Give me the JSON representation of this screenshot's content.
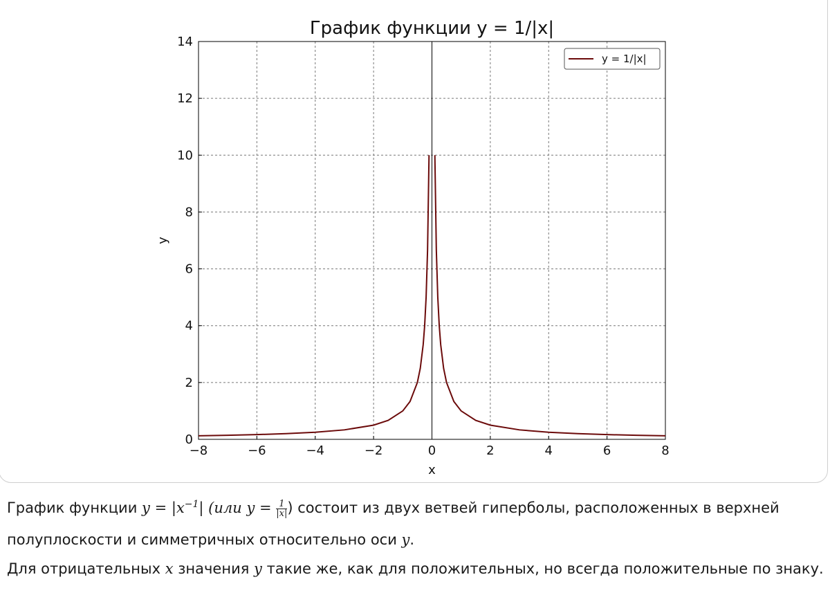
{
  "chart_data": {
    "type": "line",
    "title": "График функции y = 1/|x|",
    "x_label": "x",
    "y_label": "y",
    "xlim": [
      -8,
      8
    ],
    "ylim": [
      0,
      14
    ],
    "xticks": [
      {
        "value": -8,
        "label": "−8"
      },
      {
        "value": -6,
        "label": "−6"
      },
      {
        "value": -4,
        "label": "−4"
      },
      {
        "value": -2,
        "label": "−2"
      },
      0,
      2,
      4,
      6,
      8
    ],
    "yticks": [
      0,
      2,
      4,
      6,
      8,
      10,
      12,
      14
    ],
    "grid": true,
    "legend": "upper right",
    "series": [
      {
        "name": "y = 1/|x|",
        "color": "#6b0a0a",
        "x": [
          -8,
          -7,
          -6,
          -5,
          -4,
          -3,
          -2,
          -1.5,
          -1,
          -0.75,
          -0.5,
          -0.4,
          -0.3,
          -0.25,
          -0.2,
          -0.15,
          -0.1,
          0,
          0.1,
          0.15,
          0.2,
          0.25,
          0.3,
          0.4,
          0.5,
          0.75,
          1,
          1.5,
          2,
          3,
          4,
          5,
          6,
          7,
          8
        ],
        "values": [
          0.125,
          0.1429,
          0.1667,
          0.2,
          0.25,
          0.3333,
          0.5,
          0.6667,
          1,
          1.3333,
          2,
          2.5,
          3.3333,
          4,
          5,
          6.6667,
          10,
          null,
          10,
          6.6667,
          5,
          4,
          3.3333,
          2.5,
          2,
          1.3333,
          1,
          0.6667,
          0.5,
          0.3333,
          0.25,
          0.2,
          0.1667,
          0.1429,
          0.125
        ]
      }
    ]
  },
  "text": {
    "paragraphs": [
      [
        "График функции ",
        "y",
        " = |",
        "x",
        "−1",
        "| (или ",
        "y",
        " = ",
        "1",
        "|x|",
        ") состоит из двух ветвей гиперболы, расположенных в верхней полуплоскости и симметричных относительно оси ",
        "y",
        "."
      ],
      [
        "Для отрицательных ",
        "x",
        " значения ",
        "y",
        " такие же, как для положительных, но всегда положительные по знаку."
      ]
    ]
  }
}
